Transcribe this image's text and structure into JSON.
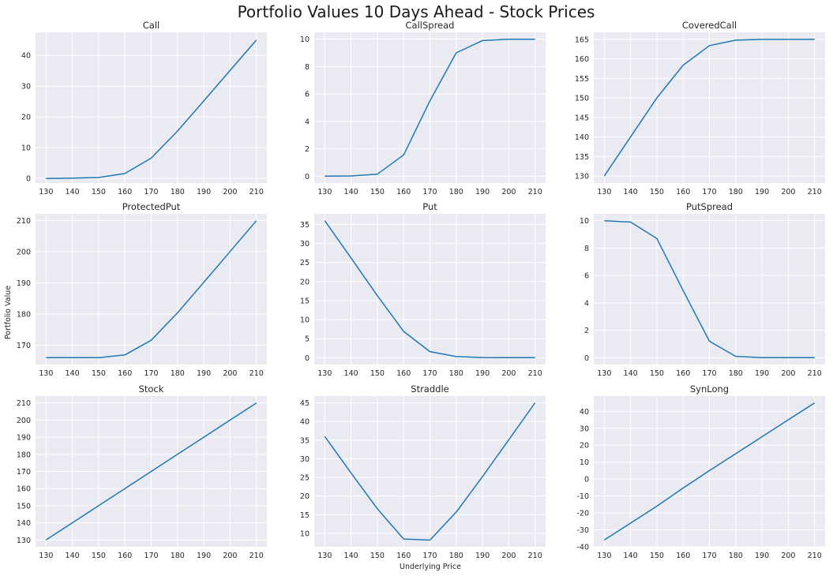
{
  "figure": {
    "suptitle": "Portfolio Values 10 Days Ahead - Stock Prices",
    "ylabel": "Portfolio Value",
    "xlabel": "Underlying Price"
  },
  "colors": {
    "line": "#1f77b4",
    "axes_bg": "#eaeaf2",
    "grid": "#ffffff"
  },
  "chart_data": [
    {
      "type": "line",
      "title": "Call",
      "grid": true,
      "x": [
        130,
        140,
        150,
        160,
        170,
        180,
        190,
        200,
        210
      ],
      "y": [
        0.0,
        0.1,
        0.3,
        1.6,
        6.6,
        15.4,
        25.2,
        35.1,
        45.0
      ],
      "xticks": [
        130,
        140,
        150,
        160,
        170,
        180,
        190,
        200,
        210
      ],
      "yticks": [
        0,
        10,
        20,
        30,
        40
      ],
      "ylim": [
        -1.5,
        47.5
      ]
    },
    {
      "type": "line",
      "title": "CallSpread",
      "grid": true,
      "x": [
        130,
        140,
        150,
        160,
        170,
        180,
        190,
        200,
        210
      ],
      "y": [
        0.0,
        0.02,
        0.15,
        1.55,
        5.5,
        9.0,
        9.9,
        10.0,
        10.0
      ],
      "xticks": [
        130,
        140,
        150,
        160,
        170,
        180,
        190,
        200,
        210
      ],
      "yticks": [
        0,
        2,
        4,
        6,
        8,
        10
      ],
      "ylim": [
        -0.5,
        10.5
      ]
    },
    {
      "type": "line",
      "title": "CoveredCall",
      "grid": true,
      "x": [
        130,
        140,
        150,
        160,
        170,
        180,
        190,
        200,
        210
      ],
      "y": [
        130.0,
        140.0,
        150.0,
        158.4,
        163.4,
        164.8,
        165.0,
        165.0,
        165.0
      ],
      "xticks": [
        130,
        140,
        150,
        160,
        170,
        180,
        190,
        200,
        210
      ],
      "yticks": [
        130,
        135,
        140,
        145,
        150,
        155,
        160,
        165
      ],
      "ylim": [
        128.2,
        166.8
      ]
    },
    {
      "type": "line",
      "title": "ProtectedPut",
      "grid": true,
      "x": [
        130,
        140,
        150,
        160,
        170,
        180,
        190,
        200,
        210
      ],
      "y": [
        166.0,
        166.0,
        166.0,
        166.9,
        171.6,
        180.4,
        190.2,
        200.1,
        210.0
      ],
      "xticks": [
        130,
        140,
        150,
        160,
        170,
        180,
        190,
        200,
        210
      ],
      "yticks": [
        170,
        180,
        190,
        200,
        210
      ],
      "ylim": [
        163.8,
        212.2
      ]
    },
    {
      "type": "line",
      "title": "Put",
      "grid": true,
      "x": [
        130,
        140,
        150,
        160,
        170,
        180,
        190,
        200,
        210
      ],
      "y": [
        36.0,
        26.2,
        16.3,
        6.9,
        1.6,
        0.3,
        0.05,
        0.0,
        0.0
      ],
      "xticks": [
        130,
        140,
        150,
        160,
        170,
        180,
        190,
        200,
        210
      ],
      "yticks": [
        0,
        5,
        10,
        15,
        20,
        25,
        30,
        35
      ],
      "ylim": [
        -1.8,
        37.8
      ]
    },
    {
      "type": "line",
      "title": "PutSpread",
      "grid": true,
      "x": [
        130,
        140,
        150,
        160,
        170,
        180,
        190,
        200,
        210
      ],
      "y": [
        10.0,
        9.9,
        8.7,
        4.9,
        1.2,
        0.1,
        0.0,
        0.0,
        0.0
      ],
      "xticks": [
        130,
        140,
        150,
        160,
        170,
        180,
        190,
        200,
        210
      ],
      "yticks": [
        0,
        2,
        4,
        6,
        8,
        10
      ],
      "ylim": [
        -0.5,
        10.5
      ]
    },
    {
      "type": "line",
      "title": "Stock",
      "grid": true,
      "x": [
        130,
        140,
        150,
        160,
        170,
        180,
        190,
        200,
        210
      ],
      "y": [
        130,
        140,
        150,
        160,
        170,
        180,
        190,
        200,
        210
      ],
      "xticks": [
        130,
        140,
        150,
        160,
        170,
        180,
        190,
        200,
        210
      ],
      "yticks": [
        130,
        140,
        150,
        160,
        170,
        180,
        190,
        200,
        210
      ],
      "ylim": [
        126,
        214
      ]
    },
    {
      "type": "line",
      "title": "Straddle",
      "grid": true,
      "x": [
        130,
        140,
        150,
        160,
        170,
        180,
        190,
        200,
        210
      ],
      "y": [
        36.0,
        26.2,
        16.6,
        8.5,
        8.2,
        15.7,
        25.2,
        35.1,
        45.0
      ],
      "xticks": [
        130,
        140,
        150,
        160,
        170,
        180,
        190,
        200,
        210
      ],
      "yticks": [
        10,
        15,
        20,
        25,
        30,
        35,
        40,
        45
      ],
      "ylim": [
        6.4,
        46.8
      ]
    },
    {
      "type": "line",
      "title": "SynLong",
      "grid": true,
      "x": [
        130,
        140,
        150,
        160,
        170,
        180,
        190,
        200,
        210
      ],
      "y": [
        -36.0,
        -26.0,
        -16.0,
        -5.3,
        5.0,
        15.0,
        25.0,
        35.0,
        45.0
      ],
      "xticks": [
        130,
        140,
        150,
        160,
        170,
        180,
        190,
        200,
        210
      ],
      "yticks": [
        -40,
        -30,
        -20,
        -10,
        0,
        10,
        20,
        30,
        40
      ],
      "ylim": [
        -40,
        49
      ]
    }
  ]
}
